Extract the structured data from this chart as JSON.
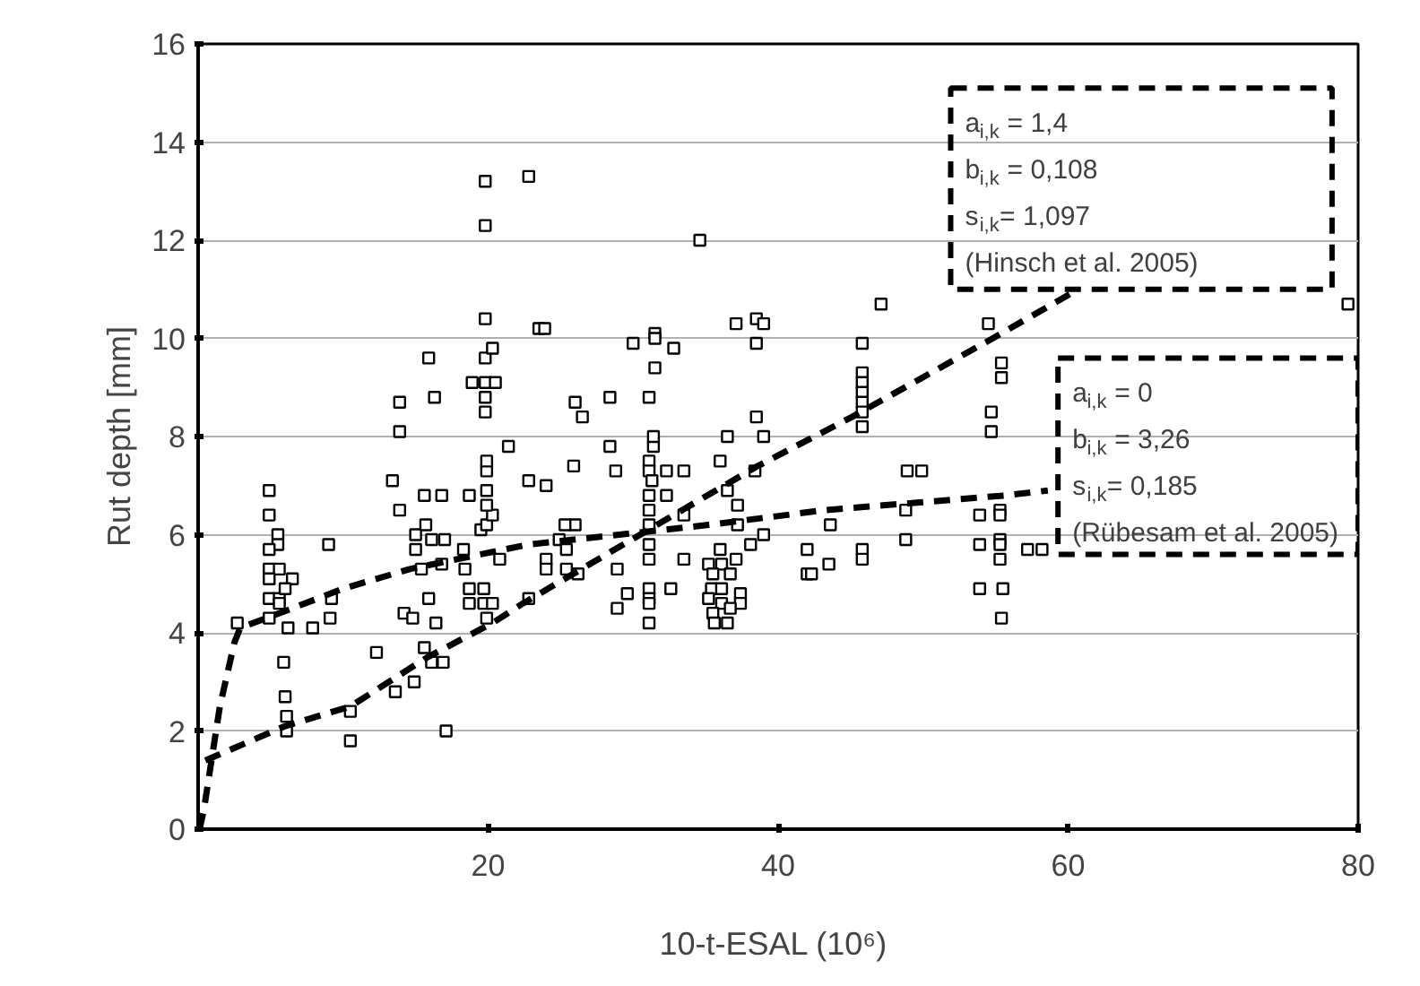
{
  "chart_data": {
    "type": "scatter",
    "xlabel": "10-t-ESAL  (10⁶)",
    "ylabel": "Rut depth [mm]",
    "xlim": [
      0,
      80
    ],
    "ylim": [
      0,
      16
    ],
    "xticks": [
      20,
      40,
      60,
      80
    ],
    "yticks": [
      0,
      2,
      4,
      6,
      8,
      10,
      12,
      14,
      16
    ],
    "grid": "y",
    "annotations": [
      "a$_{i,k}$ = 1,4\nb$_{i,k}$ = 0,108\ns$_{i,k}$= 1,097\n(Hinsch et al. 2005)",
      "a$_{i,k}$ = 0\nb$_{i,k}$ = 3,26\ns$_{i,k}$= 0,185\n(Rübesam et al. 2005)"
    ],
    "series": [
      {
        "color": "#000000",
        "marker": "square",
        "x": [
          2.7,
          4.9,
          4.9,
          5.5,
          5.5,
          4.9,
          4.9,
          5.6,
          6.5,
          4.9,
          4.9,
          5.6,
          6.0,
          4.9,
          5.6,
          5.9,
          6.0,
          6.1,
          6.1,
          9.2,
          6.2,
          7.9,
          9.1,
          9.0,
          10.5,
          10.5,
          12.3,
          13.6,
          14.9,
          17.1,
          16.1,
          16.9,
          15.6,
          14.2,
          14.8,
          16.4,
          15.9,
          15.4,
          15.0,
          15.0,
          15.7,
          16.1,
          17.0,
          15.6,
          16.8,
          18.7,
          16.8,
          18.3,
          18.4,
          18.7,
          18.7,
          19.7,
          19.7,
          20.3,
          19.9,
          20.8,
          19.5,
          19.9,
          20.3,
          19.9,
          19.9,
          19.9,
          19.9,
          21.4,
          22.8,
          18.9,
          19.8,
          20.5,
          19.8,
          19.8,
          19.8,
          20.3,
          23.5,
          19.8,
          15.9,
          16.3,
          13.9,
          13.9,
          13.4,
          13.9,
          19.8,
          19.8,
          22.8,
          34.6,
          23.9,
          37.1,
          38.5,
          39.0,
          38.5,
          30.0,
          31.5,
          31.5,
          32.8,
          31.5,
          31.1,
          28.4,
          26.0,
          26.5,
          28.4,
          31.4,
          31.4,
          36.5,
          38.5,
          39.0,
          36.0,
          25.9,
          28.8,
          31.1,
          31.1,
          32.3,
          33.5,
          31.3,
          24.0,
          31.1,
          32.3,
          31.1,
          36.5,
          37.2,
          38.4,
          33.5,
          31.1,
          26.0,
          25.3,
          37.2,
          39.0,
          38.1,
          43.6,
          24.9,
          25.4,
          31.1,
          31.1,
          33.5,
          24.0,
          24.0,
          25.4,
          26.2,
          28.9,
          29.6,
          28.9,
          31.1,
          31.1,
          31.1,
          31.1,
          32.6,
          22.8,
          36.0,
          35.2,
          36.1,
          37.1,
          35.5,
          36.7,
          35.4,
          36.1,
          37.4,
          35.2,
          36.1,
          37.4,
          36.7,
          35.5,
          35.6,
          36.5,
          42.0,
          43.5,
          42.0,
          42.3,
          45.8,
          45.8,
          45.8,
          45.8,
          45.8,
          45.8,
          45.8,
          45.8,
          45.8,
          47.1,
          54.5,
          55.4,
          55.4,
          54.7,
          54.7,
          48.9,
          49.9,
          48.8,
          48.8,
          53.9,
          55.3,
          55.3,
          55.3,
          53.9,
          55.3,
          55.3,
          57.2,
          58.2,
          53.9,
          55.5,
          55.4,
          79.3
        ],
        "values": [
          4.2,
          6.9,
          6.4,
          6.0,
          5.8,
          5.7,
          5.3,
          5.3,
          5.1,
          5.1,
          4.7,
          4.7,
          4.9,
          4.3,
          4.6,
          3.4,
          2.7,
          2.3,
          2.0,
          4.7,
          4.1,
          4.1,
          4.3,
          5.8,
          2.4,
          1.8,
          3.6,
          2.8,
          3.0,
          2.0,
          3.4,
          3.4,
          3.7,
          4.4,
          4.3,
          4.2,
          4.7,
          5.3,
          5.7,
          6.0,
          6.2,
          5.9,
          5.9,
          6.8,
          6.8,
          6.8,
          5.4,
          5.7,
          5.3,
          4.9,
          4.6,
          4.9,
          4.6,
          4.6,
          4.3,
          5.5,
          6.1,
          6.2,
          6.4,
          6.6,
          6.9,
          7.3,
          7.5,
          7.8,
          7.1,
          9.1,
          9.1,
          9.1,
          8.8,
          8.5,
          9.6,
          9.8,
          10.2,
          10.4,
          9.6,
          8.8,
          8.7,
          8.1,
          7.1,
          6.5,
          12.3,
          13.2,
          13.3,
          12.0,
          10.2,
          10.3,
          10.4,
          10.3,
          9.9,
          9.9,
          10.1,
          10.0,
          9.8,
          9.4,
          8.8,
          8.8,
          8.7,
          8.4,
          7.8,
          7.8,
          8.0,
          8.0,
          8.4,
          8.0,
          7.5,
          7.4,
          7.3,
          7.5,
          7.3,
          7.3,
          7.3,
          7.1,
          7.0,
          6.8,
          6.8,
          6.5,
          6.9,
          6.6,
          7.3,
          6.4,
          6.2,
          6.2,
          6.2,
          6.2,
          6.0,
          5.8,
          6.2,
          5.9,
          5.7,
          5.8,
          5.5,
          5.5,
          5.5,
          5.3,
          5.3,
          5.2,
          5.3,
          4.8,
          4.5,
          4.9,
          4.7,
          4.6,
          4.2,
          4.9,
          4.7,
          5.7,
          5.4,
          5.4,
          5.5,
          5.2,
          5.2,
          4.9,
          4.9,
          4.8,
          4.7,
          4.6,
          4.6,
          4.5,
          4.4,
          4.2,
          4.2,
          5.7,
          5.4,
          5.2,
          5.2,
          5.7,
          5.5,
          9.9,
          9.3,
          9.1,
          8.9,
          8.7,
          8.5,
          8.2,
          10.7,
          10.3,
          9.5,
          9.2,
          8.5,
          8.1,
          7.3,
          7.3,
          6.5,
          5.9,
          6.4,
          6.5,
          6.4,
          5.9,
          5.8,
          5.8,
          5.5,
          5.7,
          5.7,
          4.9,
          4.9,
          4.3,
          10.7
        ]
      },
      {
        "type": "line",
        "color": "#000000",
        "line_style": "dashed",
        "marker": "none",
        "x": [
          0.5,
          6,
          10.5,
          15.8,
          20.3,
          22.4,
          29.9,
          38.6,
          45.1,
          54.8,
          60.1
        ],
        "values": [
          1.4,
          2.1,
          2.5,
          3.5,
          4.2,
          4.6,
          5.9,
          7.4,
          8.4,
          10.0,
          10.9
        ]
      },
      {
        "type": "line",
        "color": "#000000",
        "line_style": "dashed",
        "marker": "none",
        "x": [
          0.1,
          0.4,
          1.5,
          2.5,
          2.9,
          6.5,
          10.0,
          14.6,
          19.5,
          22.8,
          35.2,
          43.2,
          55.7,
          58.6
        ],
        "values": [
          0.0,
          0.4,
          2.5,
          3.8,
          4.1,
          4.5,
          4.9,
          5.3,
          5.6,
          5.8,
          6.2,
          6.5,
          6.8,
          6.9
        ]
      }
    ]
  }
}
